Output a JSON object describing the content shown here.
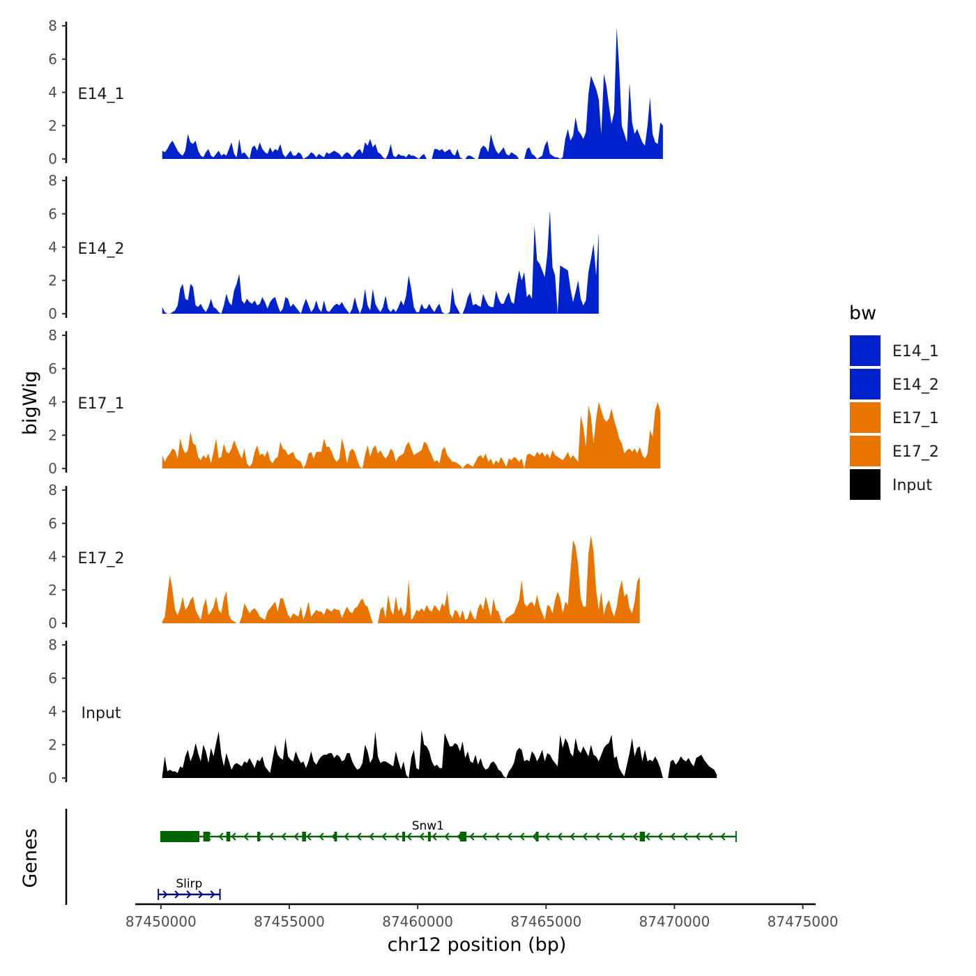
{
  "chart_data": {
    "type": "area",
    "chromosome": "chr12",
    "xlabel": "chr12 position (bp)",
    "ylabel": "bigWig",
    "genes_label": "Genes",
    "xlim": [
      87449000,
      87475500
    ],
    "x_ticks": [
      87450000,
      87455000,
      87460000,
      87465000,
      87470000,
      87475000
    ],
    "x_tick_labels": [
      "87450000",
      "87455000",
      "87460000",
      "87465000",
      "87470000",
      "87475000"
    ],
    "ylim": [
      0,
      8
    ],
    "y_ticks": [
      0,
      2,
      4,
      6,
      8
    ],
    "y_tick_labels": [
      "0",
      "2",
      "4",
      "6",
      "8"
    ],
    "signal_start": 87450050,
    "signal_step": 100,
    "legend": {
      "title": "bw",
      "entries": [
        {
          "label": "E14_1",
          "color": "#0022cc"
        },
        {
          "label": "E14_2",
          "color": "#0022cc"
        },
        {
          "label": "E17_1",
          "color": "#e87500"
        },
        {
          "label": "E17_2",
          "color": "#e87500"
        },
        {
          "label": "Input",
          "color": "#000000"
        }
      ]
    },
    "series": [
      {
        "name": "E14_1",
        "color": "#0022cc",
        "values": [
          0.5,
          0.4,
          0.6,
          0.9,
          1.1,
          0.8,
          0.5,
          0.3,
          0.2,
          0.5,
          1.5,
          1.0,
          0.9,
          1.1,
          0.5,
          0.2,
          0.1,
          0.4,
          0.6,
          0.2,
          0.1,
          0.3,
          0.5,
          0.2,
          0.3,
          0.2,
          0.6,
          1.0,
          0.3,
          0.1,
          1.2,
          0.3,
          0.4,
          0.2,
          0.0,
          0.7,
          0.8,
          0.5,
          1.0,
          0.6,
          0.4,
          0.3,
          0.7,
          0.4,
          0.6,
          0.5,
          0.9,
          0.3,
          0.1,
          0.3,
          0.5,
          0.2,
          0.2,
          0.4,
          0.3,
          0.0,
          0.1,
          0.2,
          0.4,
          0.3,
          0.1,
          0.3,
          0.2,
          0.1,
          0.4,
          0.3,
          0.4,
          0.5,
          0.4,
          0.3,
          0.1,
          0.3,
          0.4,
          0.3,
          0.1,
          0.3,
          0.5,
          0.6,
          0.3,
          1.0,
          0.8,
          1.2,
          0.7,
          0.9,
          0.4,
          0.3,
          0.1,
          0.0,
          0.3,
          0.9,
          0.2,
          0.1,
          0.3,
          0.2,
          0.2,
          0.1,
          0.3,
          0.2,
          0.2,
          0.1,
          0.0,
          0.2,
          0.3,
          0.0,
          0.0,
          0.0,
          0.6,
          0.6,
          0.5,
          0.6,
          0.4,
          0.5,
          0.6,
          0.3,
          0.2,
          0.6,
          0.1,
          0.0,
          0.0,
          0.2,
          0.2,
          0.1,
          0.0,
          0.0,
          0.6,
          0.8,
          0.7,
          0.4,
          1.5,
          0.9,
          0.5,
          0.3,
          0.5,
          0.7,
          0.3,
          0.2,
          0.4,
          0.3,
          0.2,
          0.0,
          0.0,
          0.0,
          0.6,
          0.7,
          0.3,
          0.2,
          0.0,
          0.1,
          0.2,
          0.8,
          1.1,
          0.3,
          0.2,
          0.1,
          0.1,
          0.0,
          0.1,
          1.2,
          1.8,
          1.1,
          1.4,
          2.5,
          1.7,
          1.5,
          1.2,
          1.6,
          3.9,
          5.0,
          4.6,
          4.2,
          3.6,
          1.5,
          5.1,
          4.4,
          3.2,
          2.1,
          2.8,
          7.9,
          5.5,
          2.0,
          1.5,
          1.0,
          4.6,
          2.2,
          1.5,
          1.8,
          1.4,
          1.0,
          0.8,
          2.0,
          3.7,
          1.5,
          1.0,
          0.9,
          2.2,
          2.0
        ]
      },
      {
        "name": "E14_2",
        "color": "#0022cc",
        "values": [
          0.4,
          0.1,
          0.0,
          0.0,
          0.1,
          0.2,
          0.5,
          1.5,
          1.8,
          0.9,
          0.8,
          1.8,
          1.6,
          0.5,
          0.4,
          0.6,
          0.3,
          0.1,
          0.4,
          0.9,
          0.4,
          0.3,
          0.1,
          0.0,
          0.5,
          1.2,
          0.7,
          0.5,
          1.4,
          1.8,
          2.4,
          0.8,
          0.6,
          0.9,
          0.7,
          0.6,
          0.8,
          0.5,
          0.6,
          1.0,
          0.7,
          0.3,
          0.7,
          0.9,
          1.0,
          0.5,
          0.1,
          0.3,
          1.0,
          0.9,
          0.4,
          0.6,
          0.4,
          0.2,
          0.0,
          0.5,
          0.9,
          0.5,
          0.1,
          0.3,
          0.8,
          0.3,
          0.1,
          0.8,
          0.2,
          0.1,
          0.3,
          0.5,
          0.6,
          0.5,
          0.7,
          0.4,
          0.2,
          0.0,
          0.3,
          1.0,
          0.4,
          0.0,
          0.4,
          1.5,
          0.5,
          0.2,
          1.5,
          0.6,
          0.3,
          0.1,
          0.4,
          1.1,
          0.3,
          0.1,
          0.3,
          0.1,
          0.4,
          0.8,
          0.5,
          1.1,
          2.3,
          1.5,
          0.4,
          0.1,
          0.1,
          0.6,
          0.3,
          0.3,
          0.6,
          0.3,
          0.1,
          0.4,
          0.6,
          0.1,
          0.0,
          0.0,
          0.1,
          1.6,
          0.6,
          0.3,
          0.0,
          0.0,
          0.4,
          1.0,
          1.3,
          0.5,
          0.6,
          0.5,
          0.4,
          1.2,
          0.8,
          0.5,
          0.4,
          0.4,
          1.4,
          0.9,
          0.6,
          0.6,
          1.0,
          1.3,
          0.7,
          0.6,
          1.7,
          2.6,
          2.0,
          2.5,
          1.0,
          1.2,
          0.9,
          5.3,
          3.2,
          3.0,
          2.6,
          2.2,
          3.6,
          6.2,
          2.8,
          2.3,
          0.0,
          2.9,
          2.8,
          2.7,
          2.6,
          1.5,
          0.7,
          1.3,
          2.0,
          0.9,
          0.5,
          0.8,
          2.5,
          3.3,
          4.2,
          2.3,
          4.9
        ]
      },
      {
        "name": "E17_1",
        "color": "#e87500",
        "values": [
          0.8,
          0.4,
          0.7,
          0.9,
          1.2,
          1.1,
          0.6,
          1.8,
          1.2,
          0.9,
          1.1,
          2.2,
          1.5,
          1.4,
          0.7,
          0.5,
          0.8,
          0.6,
          0.9,
          0.3,
          1.0,
          1.8,
          0.6,
          0.7,
          1.5,
          1.0,
          0.9,
          1.2,
          1.7,
          1.3,
          0.9,
          0.6,
          1.2,
          0.3,
          0.1,
          0.3,
          1.0,
          1.4,
          0.8,
          0.9,
          0.7,
          1.1,
          0.5,
          0.3,
          0.6,
          0.7,
          1.6,
          1.2,
          1.1,
          0.8,
          0.9,
          1.0,
          0.6,
          0.5,
          0.4,
          0.0,
          0.3,
          0.9,
          1.0,
          0.6,
          1.0,
          1.0,
          1.0,
          1.8,
          1.3,
          1.3,
          1.0,
          0.6,
          0.4,
          0.6,
          1.8,
          1.2,
          0.3,
          1.0,
          1.2,
          1.0,
          0.5,
          0.1,
          0.0,
          0.8,
          1.4,
          0.7,
          1.2,
          1.4,
          0.9,
          1.1,
          0.8,
          0.6,
          0.8,
          1.2,
          1.0,
          0.4,
          0.7,
          0.8,
          0.9,
          1.4,
          1.6,
          1.2,
          0.8,
          0.9,
          1.0,
          1.1,
          1.6,
          1.5,
          1.1,
          0.8,
          0.4,
          0.5,
          0.3,
          1.1,
          1.3,
          0.8,
          0.6,
          0.4,
          0.4,
          0.3,
          0.2,
          0.0,
          0.2,
          0.3,
          0.2,
          0.1,
          0.4,
          0.7,
          0.8,
          0.6,
          0.9,
          0.4,
          0.6,
          0.2,
          0.5,
          0.3,
          0.7,
          0.4,
          0.1,
          0.6,
          0.5,
          0.7,
          0.6,
          0.4,
          0.6,
          0.0,
          0.8,
          0.9,
          0.8,
          0.7,
          1.0,
          0.8,
          1.0,
          0.7,
          0.9,
          0.6,
          1.1,
          0.8,
          0.7,
          0.6,
          0.5,
          0.7,
          1.0,
          0.6,
          0.8,
          0.6,
          0.4,
          3.2,
          2.5,
          1.3,
          3.8,
          3.1,
          1.5,
          3.0,
          4.0,
          3.5,
          3.0,
          2.8,
          3.0,
          3.6,
          2.9,
          2.4,
          1.8,
          1.5,
          0.9,
          1.1,
          1.2,
          1.0,
          1.2,
          0.9,
          1.3,
          0.8,
          0.6,
          0.9,
          2.3,
          1.9,
          3.5,
          4.0,
          3.4
        ]
      },
      {
        "name": "E17_2",
        "color": "#e87500",
        "values": [
          0.1,
          0.4,
          1.7,
          2.9,
          2.0,
          0.8,
          0.5,
          0.9,
          1.6,
          0.8,
          1.0,
          1.4,
          1.6,
          0.8,
          0.5,
          0.2,
          1.0,
          1.5,
          0.5,
          0.7,
          1.0,
          1.6,
          0.8,
          0.6,
          1.5,
          1.9,
          0.5,
          0.2,
          0.1,
          0.0,
          0.0,
          0.4,
          1.2,
          0.9,
          0.6,
          0.8,
          0.9,
          0.7,
          0.4,
          0.3,
          0.2,
          0.7,
          0.9,
          1.1,
          1.3,
          0.7,
          1.5,
          1.5,
          1.0,
          0.5,
          0.3,
          0.6,
          0.5,
          0.4,
          1.0,
          0.2,
          0.7,
          1.3,
          0.4,
          0.6,
          0.8,
          0.7,
          0.7,
          0.5,
          0.9,
          0.8,
          0.7,
          0.9,
          0.8,
          0.8,
          0.3,
          0.7,
          1.0,
          0.7,
          0.6,
          0.9,
          1.0,
          1.3,
          1.5,
          1.1,
          1.0,
          0.5,
          0.0,
          0.0,
          0.0,
          0.8,
          1.0,
          0.3,
          1.7,
          0.8,
          0.5,
          1.6,
          0.7,
          1.0,
          0.4,
          0.7,
          2.6,
          0.2,
          0.4,
          0.8,
          0.7,
          0.9,
          0.7,
          1.1,
          0.8,
          0.7,
          1.1,
          0.9,
          0.7,
          1.2,
          1.0,
          1.9,
          0.6,
          0.3,
          0.8,
          0.7,
          0.3,
          0.8,
          0.2,
          0.3,
          0.8,
          0.4,
          0.2,
          0.9,
          1.2,
          0.8,
          1.6,
          1.0,
          0.4,
          1.5,
          0.8,
          0.7,
          0.2,
          0.0,
          0.3,
          0.4,
          0.5,
          0.6,
          1.0,
          1.4,
          2.6,
          1.2,
          1.0,
          1.2,
          1.3,
          1.0,
          1.7,
          1.0,
          0.6,
          0.2,
          1.1,
          1.0,
          0.6,
          1.4,
          1.9,
          1.5,
          0.6,
          1.3,
          1.1,
          3.2,
          5.0,
          4.6,
          3.5,
          1.5,
          1.0,
          1.0,
          4.2,
          5.3,
          4.3,
          2.0,
          0.8,
          1.9,
          0.5,
          1.1,
          1.4,
          0.8,
          0.4,
          1.0,
          2.0,
          2.6,
          1.6,
          1.8,
          0.9,
          0.6,
          1.3,
          2.5,
          2.8
        ]
      },
      {
        "name": "Input",
        "color": "#000000",
        "values": [
          0.1,
          1.3,
          0.4,
          0.5,
          0.4,
          0.4,
          0.3,
          0.7,
          0.6,
          1.3,
          1.7,
          1.0,
          1.4,
          2.1,
          1.5,
          1.0,
          2.0,
          1.6,
          0.9,
          1.8,
          1.3,
          2.1,
          2.8,
          1.4,
          0.7,
          1.5,
          1.0,
          0.5,
          0.8,
          0.9,
          0.8,
          0.7,
          1.0,
          0.9,
          1.2,
          0.9,
          0.6,
          1.1,
          1.0,
          1.3,
          0.7,
          0.5,
          0.3,
          1.1,
          2.0,
          1.4,
          1.2,
          1.1,
          2.4,
          1.3,
          1.1,
          1.0,
          1.6,
          1.2,
          0.9,
          1.0,
          0.6,
          1.0,
          1.6,
          1.0,
          0.8,
          1.1,
          1.3,
          1.4,
          1.4,
          1.5,
          1.5,
          1.2,
          1.4,
          1.3,
          1.0,
          1.1,
          1.5,
          1.5,
          1.0,
          0.7,
          0.5,
          0.6,
          0.9,
          2.0,
          1.6,
          0.9,
          1.2,
          2.8,
          1.3,
          0.9,
          1.0,
          1.0,
          0.9,
          0.8,
          0.7,
          1.6,
          1.0,
          0.5,
          1.0,
          0.2,
          0.0,
          1.2,
          1.7,
          0.6,
          0.5,
          2.9,
          2.0,
          1.9,
          1.6,
          1.0,
          0.7,
          0.8,
          0.6,
          0.6,
          2.7,
          2.3,
          1.9,
          1.9,
          2.1,
          2.0,
          1.6,
          2.2,
          1.2,
          1.6,
          1.0,
          0.9,
          1.4,
          0.8,
          1.2,
          0.7,
          0.5,
          0.6,
          0.9,
          1.0,
          0.8,
          0.5,
          0.4,
          0.1,
          0.0,
          0.4,
          0.6,
          0.9,
          1.6,
          1.8,
          1.7,
          1.0,
          1.1,
          1.0,
          1.6,
          1.4,
          1.0,
          1.3,
          1.7,
          1.0,
          1.5,
          1.4,
          1.1,
          0.9,
          0.7,
          2.6,
          1.8,
          2.4,
          2.1,
          1.5,
          1.3,
          2.4,
          1.7,
          1.5,
          1.9,
          1.6,
          1.3,
          2.0,
          1.4,
          1.3,
          1.0,
          1.4,
          1.8,
          2.0,
          2.1,
          2.6,
          1.2,
          1.3,
          0.6,
          0.3,
          0.1,
          0.8,
          1.5,
          2.4,
          1.3,
          1.8,
          1.9,
          1.0,
          1.7,
          1.0,
          1.1,
          1.0,
          1.3,
          1.0,
          0.6,
          0.0,
          0.0,
          0.0,
          1.0,
          1.1,
          0.8,
          1.0,
          1.3,
          1.1,
          1.0,
          1.2,
          0.9,
          0.7,
          1.2,
          1.3,
          1.4,
          1.1,
          0.9,
          0.7,
          0.6,
          0.5,
          0.2
        ]
      }
    ],
    "genes": [
      {
        "name": "Snw1",
        "strand": "-",
        "color": "#006400",
        "start": 87450000,
        "end": 87472400,
        "label_pos": 87460400,
        "row": 0,
        "exons": [
          [
            87450000,
            87451500
          ],
          [
            87451650,
            87451900
          ],
          [
            87452550,
            87452700
          ],
          [
            87453750,
            87453850
          ],
          [
            87455500,
            87455650
          ],
          [
            87456750,
            87456850
          ],
          [
            87459400,
            87459500
          ],
          [
            87460400,
            87460500
          ],
          [
            87461650,
            87461900
          ],
          [
            87464600,
            87464700
          ],
          [
            87468650,
            87468850
          ]
        ]
      },
      {
        "name": "Slirp",
        "strand": "+",
        "color": "#000080",
        "start": 87449900,
        "end": 87452300,
        "label_pos": 87451100,
        "row": 1,
        "exons": []
      }
    ]
  }
}
